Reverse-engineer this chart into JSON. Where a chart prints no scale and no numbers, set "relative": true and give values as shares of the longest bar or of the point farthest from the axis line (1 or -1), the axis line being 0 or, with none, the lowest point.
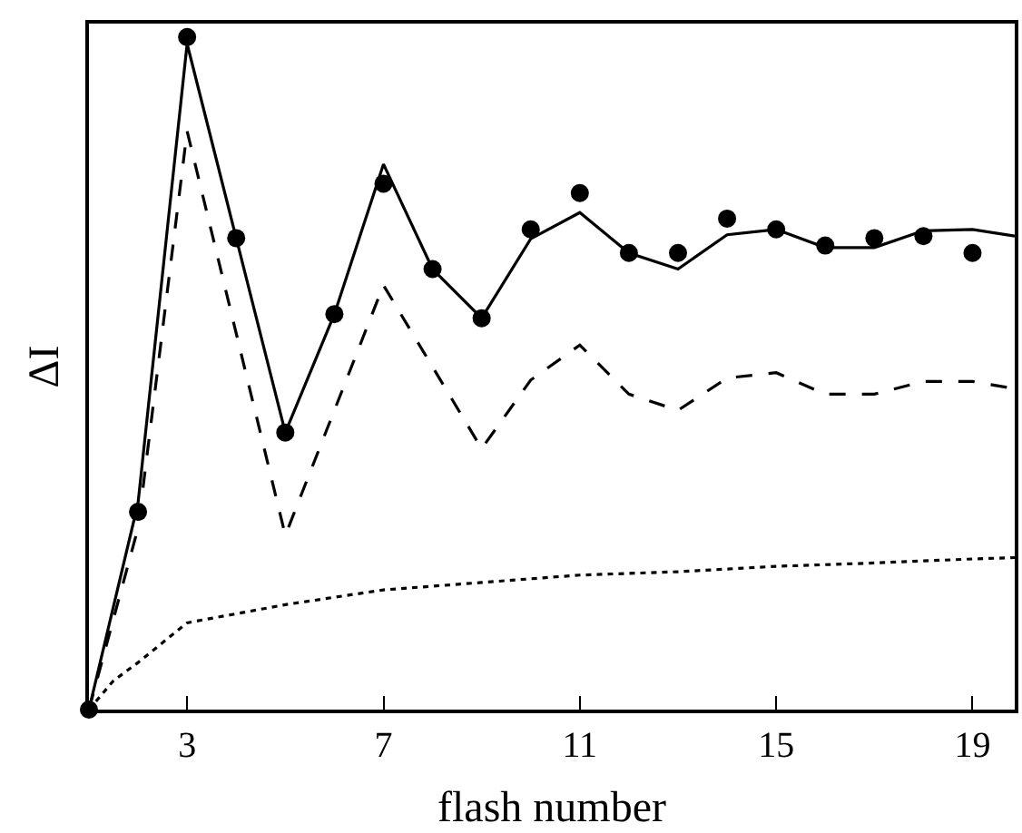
{
  "chart_data": {
    "type": "line",
    "xlabel": "flash number",
    "ylabel": "ΔI",
    "relative": true,
    "xlim": [
      1,
      19.86
    ],
    "xticks": [
      3,
      7,
      11,
      15,
      19
    ],
    "tick_labels": "x",
    "series": [
      {
        "type": "scatter",
        "marker": "circle",
        "color": "#000000",
        "x": [
          1,
          2,
          3,
          4,
          5,
          6,
          7,
          8,
          9,
          10,
          11,
          12,
          13,
          14,
          15,
          16,
          17,
          18,
          19
        ],
        "values": [
          0,
          0.294,
          1,
          0.701,
          0.412,
          0.588,
          0.782,
          0.655,
          0.582,
          0.714,
          0.768,
          0.679,
          0.679,
          0.73,
          0.714,
          0.69,
          0.701,
          0.704,
          0.679
        ]
      },
      {
        "line_style": "solid",
        "marker": "none",
        "color": "#000000",
        "x": [
          1,
          2,
          3,
          4,
          5,
          6,
          7,
          8,
          9,
          10,
          11,
          12,
          13,
          14,
          15,
          16,
          17,
          18,
          19,
          19.86
        ],
        "values": [
          0,
          0.307,
          0.99,
          0.701,
          0.412,
          0.588,
          0.811,
          0.655,
          0.582,
          0.7,
          0.739,
          0.679,
          0.655,
          0.706,
          0.714,
          0.687,
          0.687,
          0.712,
          0.714,
          0.704
        ]
      },
      {
        "line_style": "dashed",
        "marker": "none",
        "color": "#000000",
        "x": [
          1,
          2,
          3,
          5,
          7,
          9,
          10,
          11,
          12,
          13,
          14,
          15,
          16,
          17,
          18,
          19,
          19.86
        ],
        "values": [
          0,
          0.27,
          0.86,
          0.259,
          0.631,
          0.388,
          0.49,
          0.542,
          0.469,
          0.445,
          0.493,
          0.501,
          0.469,
          0.469,
          0.488,
          0.488,
          0.477
        ]
      },
      {
        "line_style": "dotted",
        "marker": "none",
        "color": "#000000",
        "x": [
          1,
          1.5,
          2,
          3,
          5,
          7,
          9,
          11,
          13,
          15,
          17,
          19,
          19.86
        ],
        "values": [
          0,
          0.043,
          0.07,
          0.129,
          0.156,
          0.178,
          0.189,
          0.2,
          0.205,
          0.213,
          0.218,
          0.224,
          0.226
        ]
      }
    ]
  }
}
